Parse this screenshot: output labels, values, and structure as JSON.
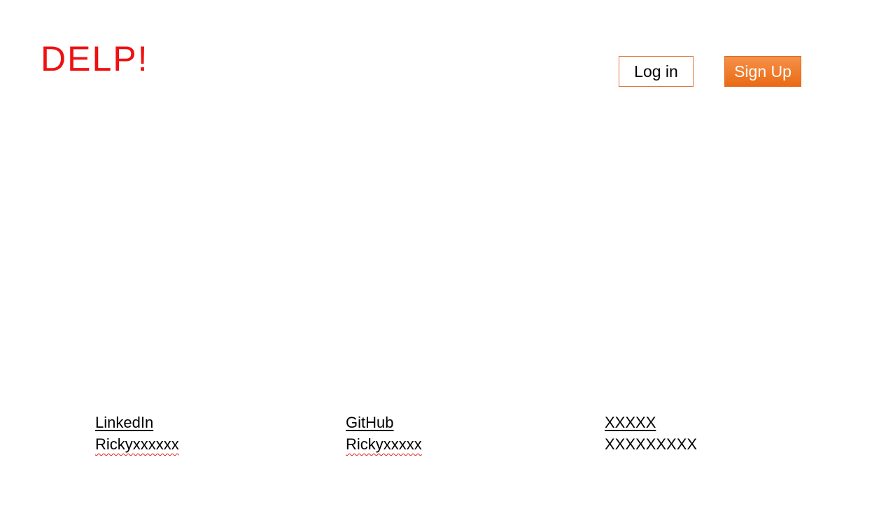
{
  "header": {
    "logo_text": "DELP!",
    "login_label": "Log in",
    "signup_label": "Sign Up"
  },
  "footer": {
    "columns": [
      {
        "title": "LinkedIn",
        "value": "Rickyxxxxxx"
      },
      {
        "title": "GitHub",
        "value": "Rickyxxxxx"
      },
      {
        "title": "XXXXX",
        "value": "XXXXXXXXX"
      }
    ]
  },
  "colors": {
    "logo": "#ee1111",
    "login_border": "#e0783a",
    "signup_gradient_top": "#f5914a",
    "signup_gradient_bottom": "#ea6a14",
    "spellcheck": "#e02020"
  }
}
